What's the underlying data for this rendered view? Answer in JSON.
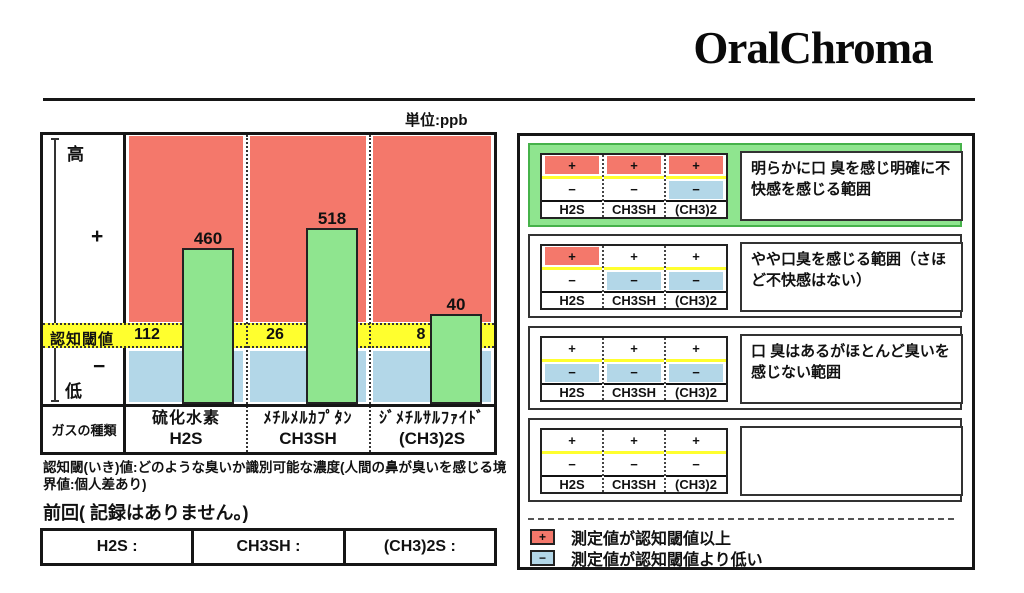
{
  "logo": "OralChroma",
  "unit_label": "単位:ppb",
  "colors": {
    "above_threshold": "#F4786B",
    "below_threshold": "#B3D7E8",
    "bar_fill": "#8FE58F",
    "threshold_band": "#FFFF2E",
    "highlight_range_bg": "#8FE58F"
  },
  "chart_data": {
    "type": "bar",
    "unit": "ppb",
    "categories": [
      "H2S",
      "CH3SH",
      "(CH3)2S"
    ],
    "category_names_jp": [
      "硫化水素",
      "ﾒﾁﾙﾒﾙｶﾌﾟﾀﾝ",
      "ｼﾞﾒﾁﾙｻﾙﾌｧｲﾄﾞ"
    ],
    "values": [
      460,
      518,
      40
    ],
    "thresholds": [
      112,
      26,
      8
    ],
    "axis_high": "高",
    "axis_plus": "+",
    "axis_minus": "−",
    "axis_low": "低",
    "threshold_row_label": "認知閾値",
    "category_row_label": "ガスの種類",
    "legend_position": "right",
    "grid": false
  },
  "note": "認知閾(いき)値:どのような臭いか識別可能な濃度(人間の鼻が臭いを感じる境界値:個人差あり)",
  "previous": {
    "label": "前回( 記録はありません。)",
    "cells": [
      "H2S :",
      "CH3SH :",
      "(CH3)2S :"
    ]
  },
  "ranges": [
    {
      "columns": [
        "H2S",
        "CH3SH",
        "(CH3)2"
      ],
      "plus_symbol": "+",
      "minus_symbol": "−",
      "plus_highlight": [
        true,
        true,
        true
      ],
      "minus_highlight": [
        false,
        false,
        true
      ],
      "box_highlighted": true,
      "description": "明らかに口 臭を感じ明確に不快感を感じる範囲"
    },
    {
      "columns": [
        "H2S",
        "CH3SH",
        "(CH3)2"
      ],
      "plus_symbol": "+",
      "minus_symbol": "−",
      "plus_highlight": [
        true,
        false,
        false
      ],
      "minus_highlight": [
        false,
        true,
        true
      ],
      "box_highlighted": false,
      "description": "やや口臭を感じる範囲（さほど不快感はない）"
    },
    {
      "columns": [
        "H2S",
        "CH3SH",
        "(CH3)2"
      ],
      "plus_symbol": "+",
      "minus_symbol": "−",
      "plus_highlight": [
        false,
        false,
        false
      ],
      "minus_highlight": [
        true,
        true,
        true
      ],
      "box_highlighted": false,
      "description": "口 臭はあるがほとんど臭いを感じない範囲"
    },
    {
      "columns": [
        "H2S",
        "CH3SH",
        "(CH3)2"
      ],
      "plus_symbol": "+",
      "minus_symbol": "−",
      "plus_highlight": [
        false,
        false,
        false
      ],
      "minus_highlight": [
        false,
        false,
        false
      ],
      "box_highlighted": false,
      "description": ""
    }
  ],
  "legend": [
    {
      "symbol": "+",
      "color": "#F4786B",
      "text": "測定値が認知閾値以上"
    },
    {
      "symbol": "−",
      "color": "#B3D7E8",
      "text": "測定値が認知閾値より低い"
    }
  ]
}
